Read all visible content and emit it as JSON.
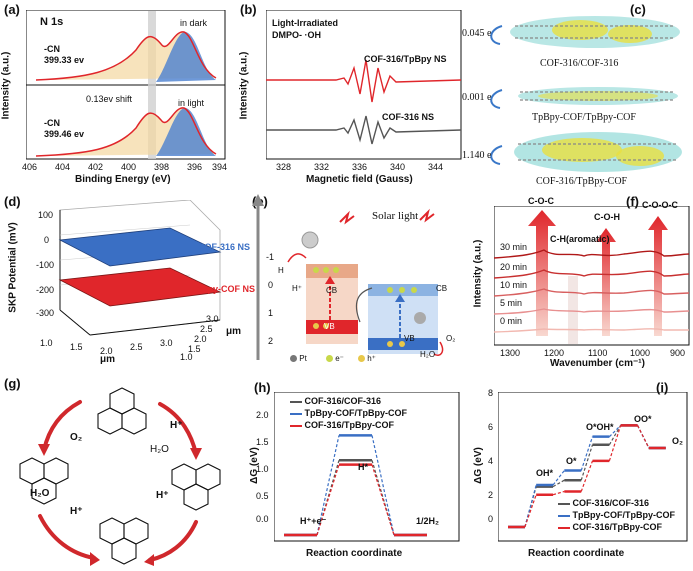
{
  "figure": {
    "panel_labels": [
      "(a)",
      "(b)",
      "(c)",
      "(d)",
      "(e)",
      "(f)",
      "(g)",
      "(h)",
      "(i)"
    ]
  },
  "panel_a": {
    "title": "N 1s",
    "condition_dark": "in dark",
    "condition_light": "in light",
    "peak_dark_label": "-CN",
    "peak_dark_value": "399.33 ev",
    "peak_light_label": "-CN",
    "peak_light_value": "399.46 ev",
    "shift_label": "0.13ev shift",
    "xlabel": "Binding Energy (eV)",
    "ylabel": "Intensity (a.u.)",
    "xticks": [
      "406",
      "404",
      "402",
      "400",
      "398",
      "396",
      "394"
    ]
  },
  "panel_b": {
    "title_line1": "Light-Irradiated",
    "title_line2": "DMPO- ·OH",
    "series_top": "COF-316/TpBpy NS",
    "series_bottom": "COF-316 NS",
    "xlabel": "Magnetic field (Gauss)",
    "ylabel": "Intensity (a.u.)",
    "xticks": [
      "328",
      "332",
      "336",
      "340",
      "344"
    ]
  },
  "panel_c": {
    "rows": [
      {
        "charge": "0.045 e",
        "label": "COF-316/COF-316"
      },
      {
        "charge": "0.001 e",
        "label": "TpBpy-COF/TpBpy-COF"
      },
      {
        "charge": "1.140 e",
        "label": "COF-316/TpBpy-COF"
      }
    ]
  },
  "panel_d": {
    "ylabel": "SKP Potential (mV)",
    "xlabel": "μm",
    "zlabel": "μm",
    "yticks": [
      "100",
      "0",
      "-100",
      "-200",
      "-300"
    ],
    "xticks": [
      "1.0",
      "1.5",
      "2.0",
      "2.5",
      "3.0"
    ],
    "zticks": [
      "1.0",
      "1.5",
      "2.0",
      "2.5",
      "3.0"
    ],
    "surface_top": "COF-316 NS",
    "surface_bottom": "TpBpy-COF NS",
    "color_top": "#3a6fc4",
    "color_bottom": "#e0262b"
  },
  "panel_e": {
    "title": "Solar light",
    "axis_ticks": [
      "-1",
      "0",
      "1",
      "2"
    ],
    "cb_label": "CB",
    "vb_label": "VB",
    "h2": "H",
    "hplus": "H⁺",
    "h2o": "H₂O",
    "o2": "O₂",
    "legend_pt": "Pt",
    "legend_e": "e⁻",
    "legend_h": "h⁺"
  },
  "panel_f": {
    "bands": [
      "C-O-C",
      "C-O-H",
      "C-O-O-C"
    ],
    "aromatic": "C-H(aromatic)",
    "times": [
      "30 min",
      "20 min",
      "10 min",
      "5 min",
      "0 min"
    ],
    "xlabel": "Wavenumber (cm⁻¹)",
    "ylabel": "Intensity (a.u.)",
    "xticks": [
      "1300",
      "1200",
      "1100",
      "1000",
      "900"
    ]
  },
  "panel_g": {
    "labels": [
      "O₂",
      "H⁺",
      "H₂O",
      "H₂O",
      "H⁺",
      "H⁺"
    ]
  },
  "panel_h": {
    "ylabel": "ΔG (eV)",
    "xlabel": "Reaction coordinate",
    "yticks": [
      "2.0",
      "1.5",
      "1.0",
      "0.5",
      "0.0"
    ],
    "start_label": "H⁺+e⁻",
    "mid_label": "H*",
    "end_label": "1/2H₂",
    "series": [
      {
        "name": "COF-316/COF-316",
        "color": "#555555"
      },
      {
        "name": "TpBpy-COF/TpBpy-COF",
        "color": "#3a6fc4"
      },
      {
        "name": "COF-316/TpBpy-COF",
        "color": "#e0262b"
      }
    ]
  },
  "panel_i": {
    "ylabel": "ΔG (eV)",
    "xlabel": "Reaction coordinate",
    "yticks": [
      "8",
      "6",
      "4",
      "2",
      "0"
    ],
    "step_labels": [
      "OH*",
      "O*",
      "O*OH*",
      "OO*",
      "O₂"
    ],
    "series": [
      {
        "name": "COF-316/COF-316",
        "color": "#555555"
      },
      {
        "name": "TpBpy-COF/TpBpy-COF",
        "color": "#3a6fc4"
      },
      {
        "name": "COF-316/TpBpy-COF",
        "color": "#e0262b"
      }
    ]
  },
  "chart_data": [
    {
      "type": "line",
      "title": "N 1s",
      "xlabel": "Binding Energy (eV)",
      "ylabel": "Intensity (a.u.)",
      "xlim": [
        406,
        394
      ],
      "series": [
        {
          "name": "in dark",
          "peaks": [
            399.33,
            397.9
          ]
        },
        {
          "name": "in light",
          "peaks": [
            399.46,
            397.9
          ]
        }
      ]
    },
    {
      "type": "line",
      "xlabel": "Magnetic field (Gauss)",
      "ylabel": "Intensity (a.u.)",
      "xlim": [
        326,
        346
      ],
      "series": [
        {
          "name": "COF-316/TpBpy NS",
          "color": "#e0262b"
        },
        {
          "name": "COF-316 NS",
          "color": "#555555"
        }
      ]
    },
    {
      "type": "line",
      "xlabel": "Reaction coordinate",
      "ylabel": "ΔG (eV)",
      "ylim": [
        0,
        2.2
      ],
      "categories": [
        "H⁺+e⁻",
        "H*",
        "1/2H₂"
      ],
      "series": [
        {
          "name": "COF-316/COF-316",
          "values": [
            0,
            1.2,
            0
          ]
        },
        {
          "name": "TpBpy-COF/TpBpy-COF",
          "values": [
            0,
            1.6,
            0
          ]
        },
        {
          "name": "COF-316/TpBpy-COF",
          "values": [
            0,
            1.13,
            0
          ]
        }
      ]
    },
    {
      "type": "line",
      "xlabel": "Reaction coordinate",
      "ylabel": "ΔG (eV)",
      "ylim": [
        -0.5,
        8
      ],
      "categories": [
        "start",
        "OH*",
        "O*",
        "O*OH*",
        "OO*",
        "O₂"
      ],
      "series": [
        {
          "name": "COF-316/COF-316",
          "values": [
            0,
            2.5,
            2.9,
            5.1,
            6.3,
            4.9
          ]
        },
        {
          "name": "TpBpy-COF/TpBpy-COF",
          "values": [
            0,
            2.6,
            3.5,
            5.6,
            6.3,
            4.9
          ]
        },
        {
          "name": "COF-316/TpBpy-COF",
          "values": [
            0,
            2.0,
            2.2,
            4.1,
            6.3,
            4.9
          ]
        }
      ]
    }
  ]
}
